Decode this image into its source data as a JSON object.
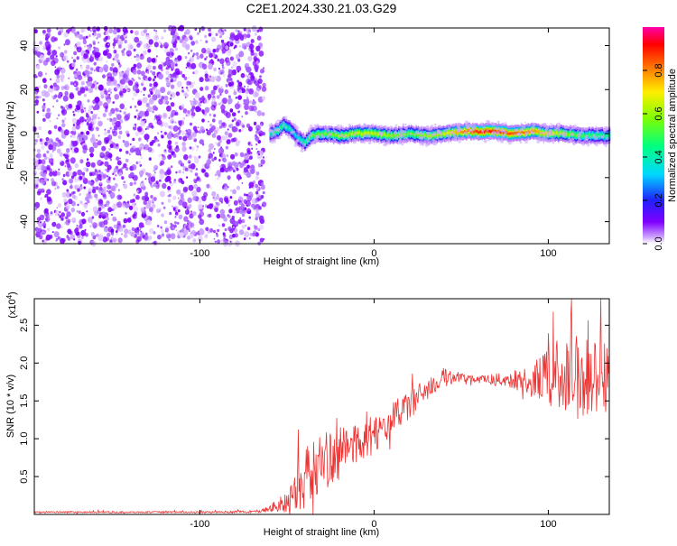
{
  "title": "C2E1.2024.330.21.03.G29",
  "colors": {
    "snr_line": "#ee3333",
    "spectrum_dots": "#7f00ff",
    "ridge_core": "#e03030"
  },
  "chart_data": [
    {
      "type": "heatmap",
      "title": "C2E1.2024.330.21.03.G29",
      "xlabel": "Height of straight line (km)",
      "ylabel": "Frequency (Hz)",
      "xlim": [
        -195,
        135
      ],
      "ylim": [
        -50,
        48
      ],
      "xticks": [
        -100,
        0,
        100
      ],
      "xtick_labels": [
        "-100",
        "0",
        "100"
      ],
      "yticks": [
        -40,
        -20,
        0,
        20,
        40
      ],
      "ytick_labels": [
        "-40",
        "-20",
        "0",
        "20",
        "40"
      ],
      "colorbar": {
        "label": "Normalized spectral amplitude",
        "range": [
          0,
          1
        ],
        "ticks": [
          0,
          0.2,
          0.4,
          0.6,
          0.8
        ],
        "tick_labels": [
          "0.0",
          "0.2",
          "0.4",
          "0.6",
          "0.8"
        ]
      },
      "noise_region_x": [
        -195,
        -62
      ],
      "ridge": {
        "x": [
          -60,
          -56,
          -52,
          -48,
          -44,
          -40,
          -36,
          -30,
          -20,
          -10,
          0,
          10,
          20,
          30,
          40,
          50,
          60,
          70,
          80,
          90,
          100,
          110,
          120,
          135
        ],
        "frequency": [
          0,
          1,
          4,
          2,
          -2,
          -4,
          -1,
          0,
          -1,
          0,
          0,
          -1,
          0,
          -1,
          0,
          1,
          1,
          1,
          0,
          1,
          0,
          0,
          -1,
          -1
        ],
        "amplitude": [
          0.4,
          0.5,
          0.45,
          0.4,
          0.35,
          0.45,
          0.55,
          0.55,
          0.6,
          0.65,
          0.65,
          0.6,
          0.55,
          0.6,
          0.65,
          0.8,
          0.9,
          0.9,
          0.85,
          0.8,
          0.7,
          0.6,
          0.5,
          0.45
        ]
      }
    },
    {
      "type": "line",
      "xlabel": "Height of straight line (km)",
      "ylabel": "SNR (10 * v/v)",
      "y_multiplier": "(x10",
      "y_multiplier_exp": "4",
      "y_multiplier_close": ")",
      "xlim": [
        -195,
        135
      ],
      "ylim": [
        0,
        2.85
      ],
      "xticks": [
        -100,
        0,
        100
      ],
      "xtick_labels": [
        "-100",
        "0",
        "100"
      ],
      "yticks": [
        0.5,
        1.0,
        1.5,
        2.0,
        2.5
      ],
      "ytick_labels": [
        "0.5",
        "1.0",
        "1.5",
        "2.0",
        "2.5"
      ],
      "series": [
        {
          "x": [
            -195,
            -160,
            -120,
            -90,
            -65,
            -50,
            -45,
            -40,
            -35,
            -30,
            -20,
            -10,
            0,
            10,
            20,
            30,
            40,
            50,
            60,
            70,
            80,
            90,
            100,
            110,
            120,
            130,
            135
          ],
          "y": [
            0.03,
            0.03,
            0.03,
            0.03,
            0.04,
            0.15,
            0.35,
            0.5,
            0.6,
            0.7,
            0.8,
            0.95,
            1.05,
            1.25,
            1.45,
            1.65,
            1.8,
            1.82,
            1.78,
            1.78,
            1.78,
            1.75,
            1.85,
            1.85,
            1.8,
            1.75,
            1.7
          ],
          "spread": [
            0.01,
            0.01,
            0.01,
            0.01,
            0.02,
            0.15,
            0.3,
            0.35,
            0.4,
            0.4,
            0.35,
            0.3,
            0.25,
            0.22,
            0.2,
            0.15,
            0.12,
            0.06,
            0.06,
            0.08,
            0.12,
            0.2,
            0.4,
            0.55,
            0.6,
            0.6,
            0.6
          ]
        }
      ]
    }
  ]
}
